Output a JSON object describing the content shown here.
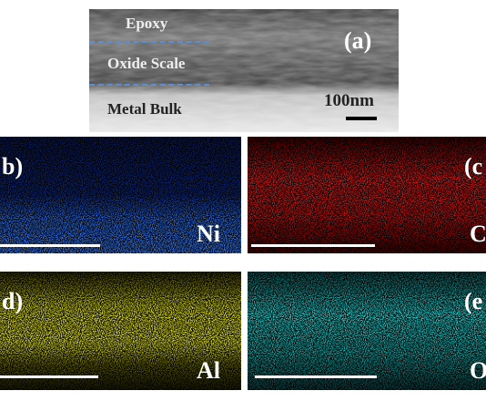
{
  "panels": {
    "a": {
      "label": "(a)",
      "layers": [
        "Epoxy",
        "Oxide Scale",
        "Metal Bulk"
      ],
      "scale_bar": "100nm"
    },
    "b": {
      "label": "b)",
      "element": "Ni"
    },
    "c": {
      "label": "(c",
      "element": "C"
    },
    "d": {
      "label": "d)",
      "element": "Al"
    },
    "e": {
      "label": "(e",
      "element": "O"
    }
  }
}
